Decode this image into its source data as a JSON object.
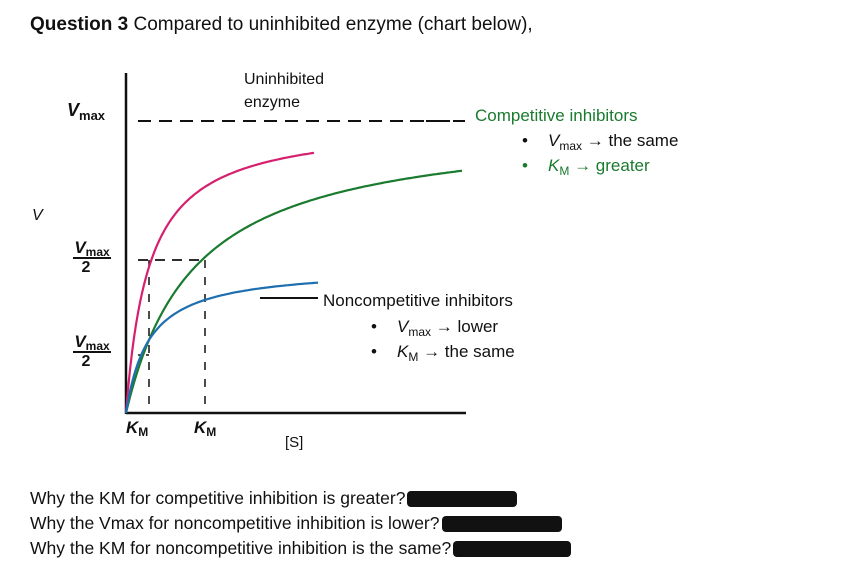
{
  "header": {
    "question_number": "Question 3",
    "prompt": "Compared to uninhibited enzyme (chart below),"
  },
  "chart": {
    "y_axis_label": "V",
    "x_axis_label": "[S]",
    "vmax_label": "V",
    "vmax_sub": "max",
    "half_label_den": "2",
    "km_label": "K",
    "km_sub": "M",
    "curves": {
      "uninhibited": {
        "label_line1": "Uninhibited",
        "label_line2": "enzyme",
        "color": "#d6206f"
      },
      "competitive": {
        "color": "#1a7a2e"
      },
      "noncompetitive": {
        "color": "#1f6fb0"
      }
    }
  },
  "chart_data": {
    "type": "line",
    "title": "",
    "xlabel": "[S]",
    "ylabel": "V",
    "series": [
      {
        "name": "Uninhibited enzyme",
        "vmax": 1.0,
        "km": 1.0
      },
      {
        "name": "Competitive inhibitors",
        "vmax": 1.0,
        "km": 3.0
      },
      {
        "name": "Noncompetitive inhibitors",
        "vmax": 0.5,
        "km": 1.0
      }
    ]
  },
  "competitive": {
    "heading": "Competitive inhibitors",
    "items": [
      {
        "var": "V",
        "sub": "max",
        "text": "→ the same"
      },
      {
        "var": "K",
        "sub": "M",
        "text": "→ greater"
      }
    ]
  },
  "noncompetitive": {
    "heading": "Noncompetitive inhibitors",
    "items": [
      {
        "var": "V",
        "sub": "max",
        "text": "→ lower"
      },
      {
        "var": "K",
        "sub": "M",
        "text": "→ the same"
      }
    ]
  },
  "questions": [
    "Why the KM for competitive inhibition is greater?",
    "Why the Vmax for noncompetitive inhibition is lower?",
    "Why the KM for noncompetitive inhibition is the same?"
  ]
}
